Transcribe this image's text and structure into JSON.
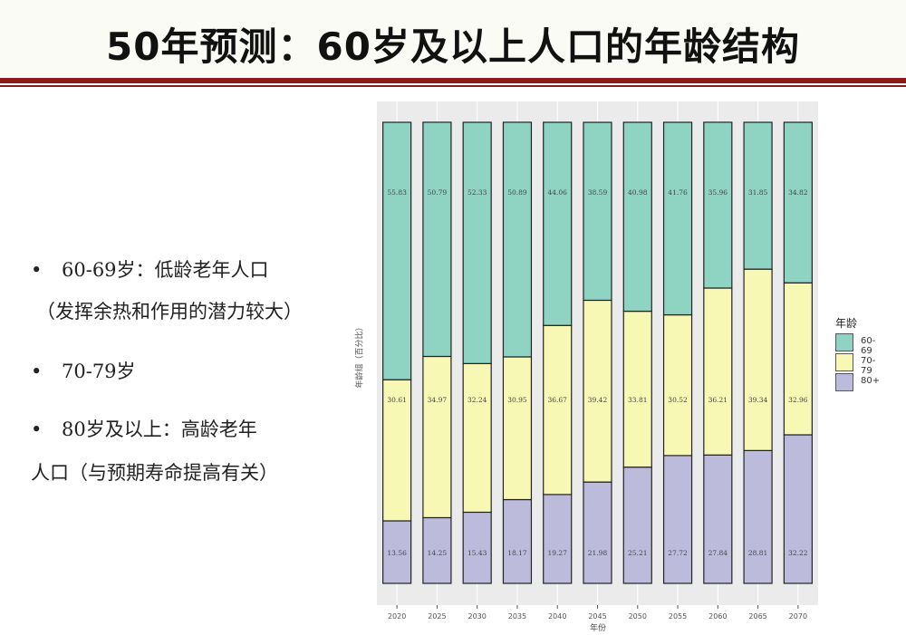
{
  "slide": {
    "title": "50年预测：60岁及以上人口的年龄结构"
  },
  "bullets": [
    {
      "lines": [
        "60-69岁：低龄老年人口",
        "（发挥余热和作用的潜力较大）"
      ]
    },
    {
      "lines": [
        "70-79岁"
      ]
    },
    {
      "lines": [
        "80岁及以上：高龄老年",
        "人口（与预期寿命提高有关）"
      ]
    }
  ],
  "colors": {
    "s60_69": "#8fd3c2",
    "s70_79": "#f6f8b4",
    "s80": "#bcbbdc",
    "panel": "#ebebeb",
    "title_rule": "#8b1a1a"
  },
  "chart_data": {
    "type": "bar",
    "stacked": true,
    "percent": true,
    "categories": [
      "2020",
      "2025",
      "2030",
      "2035",
      "2040",
      "2045",
      "2050",
      "2055",
      "2060",
      "2065",
      "2070"
    ],
    "series": [
      {
        "name": "60-69",
        "values": [
          55.83,
          50.79,
          52.33,
          50.89,
          44.06,
          38.59,
          40.98,
          41.76,
          35.96,
          31.85,
          34.82
        ]
      },
      {
        "name": "70-79",
        "values": [
          30.61,
          34.97,
          32.24,
          30.95,
          36.67,
          39.42,
          33.81,
          30.52,
          36.21,
          39.34,
          32.96
        ]
      },
      {
        "name": "80+",
        "values": [
          13.56,
          14.25,
          15.43,
          18.17,
          19.27,
          21.98,
          25.21,
          27.72,
          27.84,
          28.81,
          32.22
        ]
      }
    ],
    "xlabel": "年份",
    "ylabel": "年龄组（百分比）",
    "legend_title": "年龄",
    "legend_position": "right",
    "ylim": [
      0,
      100
    ]
  }
}
